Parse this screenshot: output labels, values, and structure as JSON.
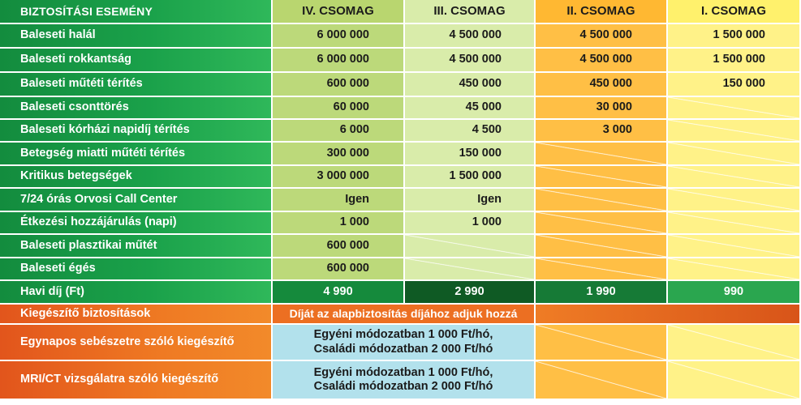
{
  "header": {
    "event": "BIZTOSÍTÁSI ESEMÉNY",
    "packages": [
      "IV. CSOMAG",
      "III. CSOMAG",
      "II. CSOMAG",
      "I. CSOMAG"
    ]
  },
  "rows": [
    {
      "label": "Baleseti halál",
      "values": [
        "6 000 000",
        "4 500 000",
        "4 500 000",
        "1 500 000"
      ]
    },
    {
      "label": "Baleseti rokkantság",
      "values": [
        "6 000 000",
        "4 500 000",
        "4 500 000",
        "1 500 000"
      ]
    },
    {
      "label": "Baleseti műtéti térítés",
      "values": [
        "600 000",
        "450 000",
        "450 000",
        "150 000"
      ]
    },
    {
      "label": "Baleseti csonttörés",
      "values": [
        "60 000",
        "45 000",
        "30 000",
        ""
      ]
    },
    {
      "label": "Baleseti kórházi napidíj térítés",
      "values": [
        "6 000",
        "4 500",
        "3 000",
        ""
      ]
    },
    {
      "label": "Betegség miatti műtéti térítés",
      "values": [
        "300 000",
        "150 000",
        "",
        ""
      ]
    },
    {
      "label": "Kritikus betegségek",
      "values": [
        "3 000 000",
        "1 500 000",
        "",
        ""
      ]
    },
    {
      "label": "7/24 órás Orvosi Call Center",
      "values": [
        "Igen",
        "Igen",
        "",
        ""
      ]
    },
    {
      "label": "Étkezési hozzájárulás (napi)",
      "values": [
        "1 000",
        "1 000",
        "",
        ""
      ]
    },
    {
      "label": "Baleseti plasztikai műtét",
      "values": [
        "600 000",
        "",
        "",
        ""
      ]
    },
    {
      "label": "Baleseti égés",
      "values": [
        "600 000",
        "",
        "",
        ""
      ]
    }
  ],
  "fee": {
    "label": "Havi díj (Ft)",
    "values": [
      "4 990",
      "2 990",
      "1 990",
      "990"
    ]
  },
  "supplementary": {
    "label": "Kiegészítő biztosítások",
    "note": "Díját az alapbiztosítás díjához adjuk hozzá",
    "items": [
      {
        "label": "Egynapos sebészetre szóló kiegészítő",
        "line1": "Egyéni módozatban 1 000 Ft/hó,",
        "line2": "Családi módozatban 2 000 Ft/hó"
      },
      {
        "label": "MRI/CT vizsgálatra szóló kiegészítő",
        "line1": "Egyéni módozatban 1 000 Ft/hó,",
        "line2": "Családi módozatban 2 000 Ft/hó"
      }
    ]
  },
  "colors": {
    "green_dark": "#138c3e",
    "orange": "#ef7a23",
    "col4": "#bcd97a",
    "col3": "#d9ecaa",
    "col2": "#ffbf45",
    "col1": "#fff288",
    "blue": "#b2e1ec"
  }
}
